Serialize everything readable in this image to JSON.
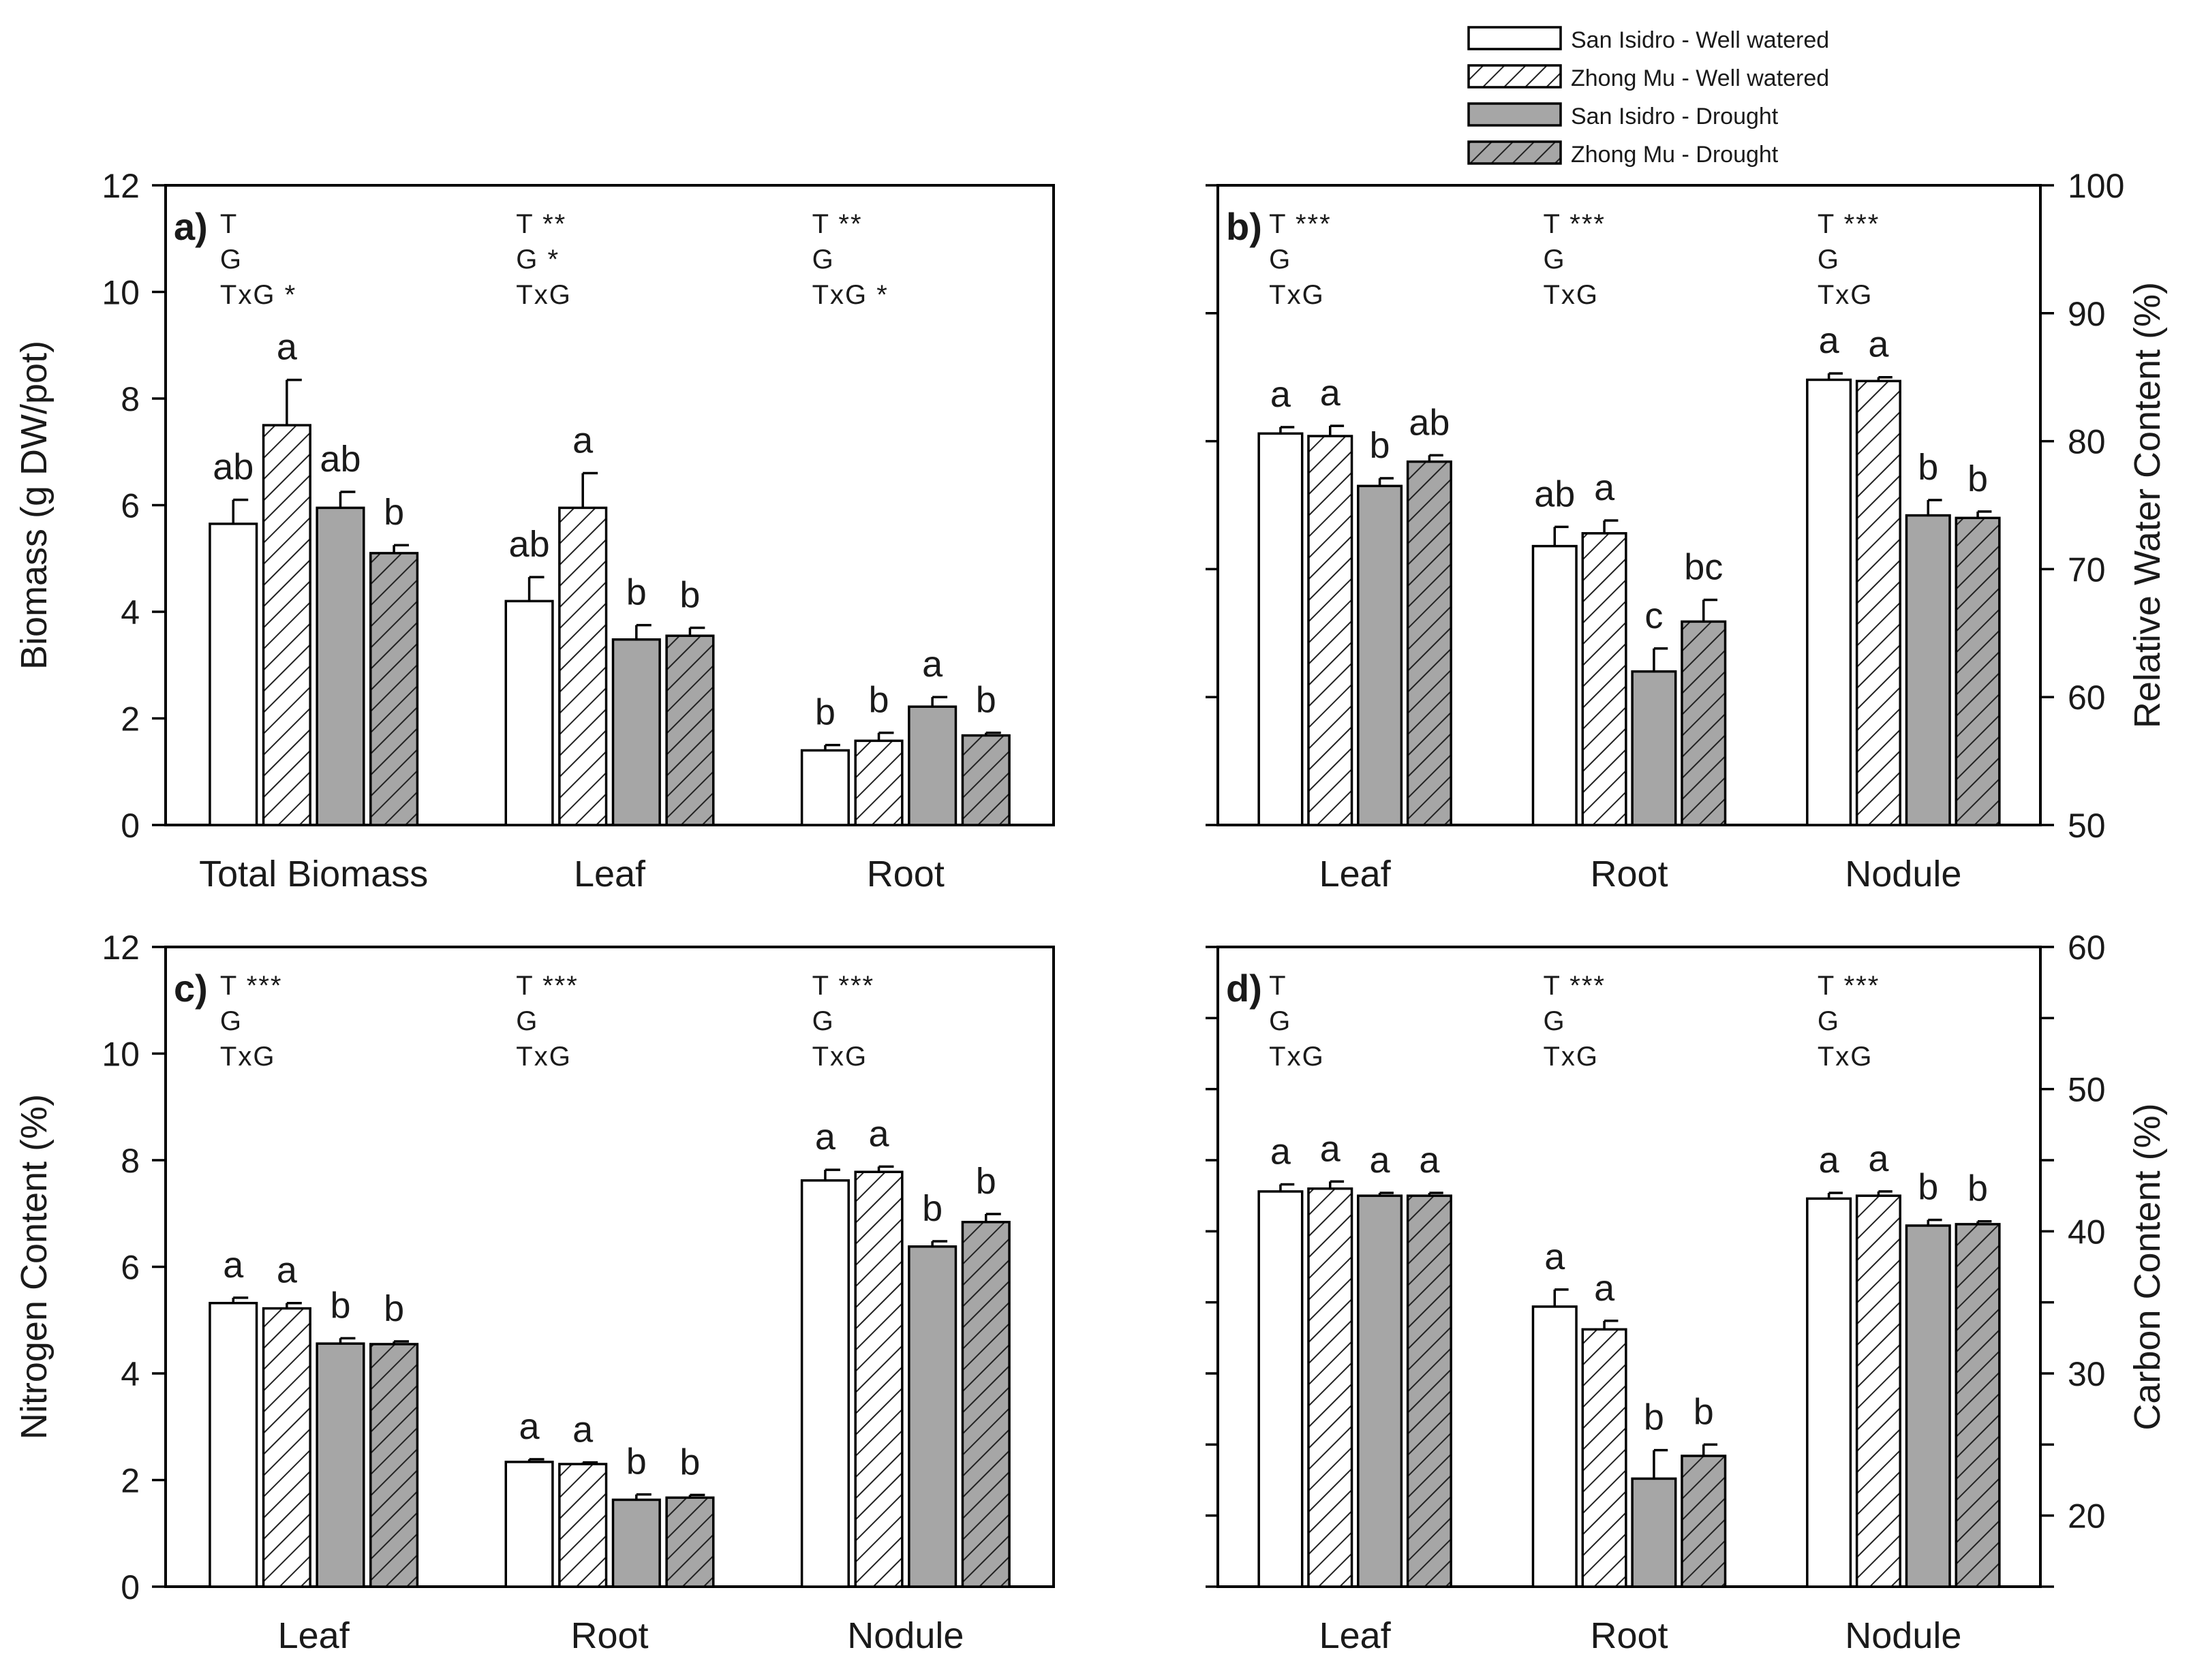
{
  "legend": {
    "entries": [
      {
        "name": "San Isidro - Well watered",
        "fill": "white",
        "hatch": false
      },
      {
        "name": "Zhong Mu - Well watered",
        "fill": "white",
        "hatch": true
      },
      {
        "name": "San Isidro - Drought",
        "fill": "grey",
        "hatch": false
      },
      {
        "name": "Zhong Mu - Drought",
        "fill": "grey",
        "hatch": true
      }
    ]
  },
  "colors": {
    "white_fill": "#ffffff",
    "grey_fill": "#a6a6a6",
    "hatch_stroke": "#222222",
    "axis": "#000000"
  },
  "chart_data": [
    {
      "id": "a",
      "type": "bar",
      "panel_label": "a)",
      "ylabel": "Biomass (g DW/pot)",
      "ylabel_side": "left",
      "ylim": [
        0,
        12
      ],
      "yticks": [
        0,
        2,
        4,
        6,
        8,
        10,
        12
      ],
      "yticks_labeled": true,
      "categories": [
        "Total Biomass",
        "Leaf",
        "Root"
      ],
      "series": [
        {
          "name": "San Isidro - Well watered",
          "values": [
            5.65,
            4.2,
            1.4
          ],
          "errors": [
            0.45,
            0.45,
            0.1
          ]
        },
        {
          "name": "Zhong Mu - Well watered",
          "values": [
            7.5,
            5.95,
            1.58
          ],
          "errors": [
            0.85,
            0.65,
            0.15
          ]
        },
        {
          "name": "San Isidro - Drought",
          "values": [
            5.95,
            3.48,
            2.22
          ],
          "errors": [
            0.3,
            0.27,
            0.18
          ]
        },
        {
          "name": "Zhong Mu - Drought",
          "values": [
            5.1,
            3.55,
            1.68
          ],
          "errors": [
            0.15,
            0.15,
            0.05
          ]
        }
      ],
      "letters": [
        [
          "ab",
          "a",
          "ab",
          "b"
        ],
        [
          "ab",
          "a",
          "b",
          "b"
        ],
        [
          "b",
          "b",
          "a",
          "b"
        ]
      ],
      "stats": [
        [
          "T",
          "G",
          "TxG *"
        ],
        [
          "T **",
          "G *",
          "TxG"
        ],
        [
          "T **",
          "G",
          "TxG *"
        ]
      ]
    },
    {
      "id": "b",
      "type": "bar",
      "panel_label": "b)",
      "ylabel": "Relative Water Content (%)",
      "ylabel_side": "right",
      "ylim": [
        50,
        100
      ],
      "yticks": [
        50,
        60,
        70,
        80,
        90,
        100
      ],
      "yticks_labeled": true,
      "categories": [
        "Leaf",
        "Root",
        "Nodule"
      ],
      "series": [
        {
          "name": "San Isidro - Well watered",
          "values": [
            80.6,
            71.8,
            84.8
          ],
          "errors": [
            0.5,
            1.5,
            0.5
          ]
        },
        {
          "name": "Zhong Mu - Well watered",
          "values": [
            80.4,
            72.8,
            84.7
          ],
          "errors": [
            0.8,
            1.0,
            0.3
          ]
        },
        {
          "name": "San Isidro - Drought",
          "values": [
            76.5,
            62.0,
            74.2
          ],
          "errors": [
            0.6,
            1.8,
            1.2
          ]
        },
        {
          "name": "Zhong Mu - Drought",
          "values": [
            78.4,
            65.9,
            74.0
          ],
          "errors": [
            0.5,
            1.7,
            0.5
          ]
        }
      ],
      "letters": [
        [
          "a",
          "a",
          "b",
          "ab"
        ],
        [
          "ab",
          "a",
          "c",
          "bc"
        ],
        [
          "a",
          "a",
          "b",
          "b"
        ]
      ],
      "stats": [
        [
          "T ***",
          "G",
          "TxG"
        ],
        [
          "T ***",
          "G",
          "TxG"
        ],
        [
          "T ***",
          "G",
          "TxG"
        ]
      ]
    },
    {
      "id": "c",
      "type": "bar",
      "panel_label": "c)",
      "ylabel": "Nitrogen Content (%)",
      "ylabel_side": "left",
      "ylim": [
        0,
        12
      ],
      "yticks": [
        0,
        2,
        4,
        6,
        8,
        10,
        12
      ],
      "yticks_labeled": true,
      "categories": [
        "Leaf",
        "Root",
        "Nodule"
      ],
      "series": [
        {
          "name": "San Isidro - Well watered",
          "values": [
            5.32,
            2.34,
            7.62
          ],
          "errors": [
            0.1,
            0.05,
            0.2
          ]
        },
        {
          "name": "Zhong Mu - Well watered",
          "values": [
            5.22,
            2.3,
            7.78
          ],
          "errors": [
            0.1,
            0.03,
            0.1
          ]
        },
        {
          "name": "San Isidro - Drought",
          "values": [
            4.56,
            1.63,
            6.38
          ],
          "errors": [
            0.1,
            0.1,
            0.1
          ]
        },
        {
          "name": "Zhong Mu - Drought",
          "values": [
            4.55,
            1.67,
            6.84
          ],
          "errors": [
            0.05,
            0.05,
            0.15
          ]
        }
      ],
      "letters": [
        [
          "a",
          "a",
          "b",
          "b"
        ],
        [
          "a",
          "a",
          "b",
          "b"
        ],
        [
          "a",
          "a",
          "b",
          "b"
        ]
      ],
      "stats": [
        [
          "T ***",
          "G",
          "TxG"
        ],
        [
          "T ***",
          "G",
          "TxG"
        ],
        [
          "T ***",
          "G",
          "TxG"
        ]
      ]
    },
    {
      "id": "d",
      "type": "bar",
      "panel_label": "d)",
      "ylabel": "Carbon Content (%)",
      "ylabel_side": "right",
      "ylim": [
        15,
        60
      ],
      "yticks": [
        15,
        20,
        25,
        30,
        35,
        40,
        45,
        50,
        55,
        60
      ],
      "yticks_labeled_values": [
        20,
        30,
        40,
        50,
        60
      ],
      "categories": [
        "Leaf",
        "Root",
        "Nodule"
      ],
      "series": [
        {
          "name": "San Isidro - Well watered",
          "values": [
            42.8,
            34.7,
            42.3
          ],
          "errors": [
            0.5,
            1.2,
            0.4
          ]
        },
        {
          "name": "Zhong Mu - Well watered",
          "values": [
            43.0,
            33.1,
            42.5
          ],
          "errors": [
            0.5,
            0.6,
            0.3
          ]
        },
        {
          "name": "San Isidro - Drought",
          "values": [
            42.5,
            22.6,
            40.4
          ],
          "errors": [
            0.2,
            2.0,
            0.4
          ]
        },
        {
          "name": "Zhong Mu - Drought",
          "values": [
            42.5,
            24.2,
            40.5
          ],
          "errors": [
            0.2,
            0.8,
            0.2
          ]
        }
      ],
      "letters": [
        [
          "a",
          "a",
          "a",
          "a"
        ],
        [
          "a",
          "a",
          "b",
          "b"
        ],
        [
          "a",
          "a",
          "b",
          "b"
        ]
      ],
      "stats": [
        [
          "T",
          "G",
          "TxG"
        ],
        [
          "T ***",
          "G",
          "TxG"
        ],
        [
          "T ***",
          "G",
          "TxG"
        ]
      ]
    }
  ]
}
